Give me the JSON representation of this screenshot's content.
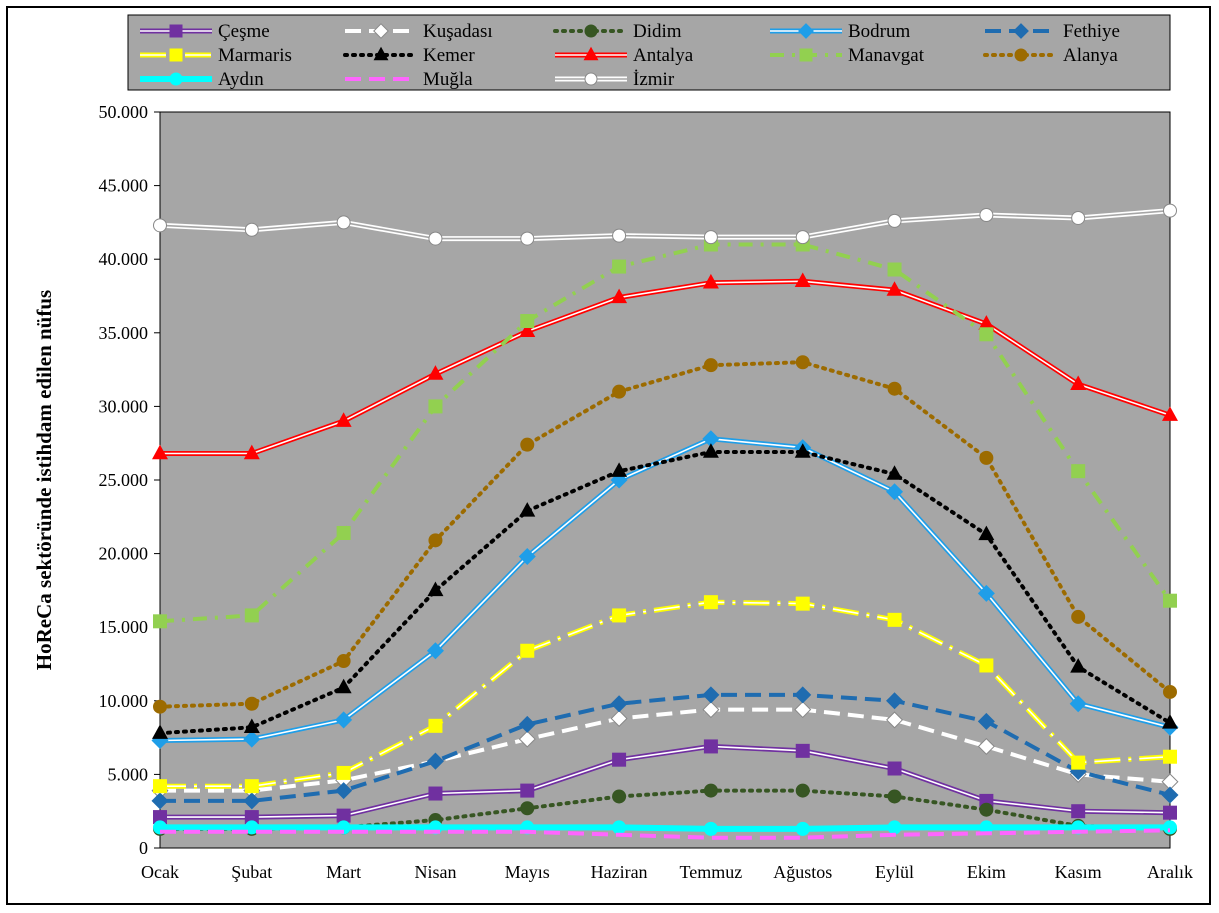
{
  "chart_data": {
    "type": "line",
    "ylabel": "HoReCa sektöründe istihdam edilen nüfus",
    "ylim": [
      0,
      50000
    ],
    "yticks": [
      0,
      5000,
      10000,
      15000,
      20000,
      25000,
      30000,
      35000,
      40000,
      45000,
      50000
    ],
    "ytick_labels": [
      "0",
      "5.000",
      "10.000",
      "15.000",
      "20.000",
      "25.000",
      "30.000",
      "35.000",
      "40.000",
      "45.000",
      "50.000"
    ],
    "categories": [
      "Ocak",
      "Şubat",
      "Mart",
      "Nisan",
      "Mayıs",
      "Haziran",
      "Temmuz",
      "Ağustos",
      "Eylül",
      "Ekim",
      "Kasım",
      "Aralık"
    ],
    "grid": false,
    "legend_position": "top",
    "plot_background": "#a6a6a6",
    "series": [
      {
        "name": "Çeşme",
        "color": "#7030a0",
        "style": "double",
        "marker": "square",
        "values": [
          2100,
          2100,
          2200,
          3700,
          3900,
          6000,
          6900,
          6600,
          5400,
          3200,
          2500,
          2400
        ]
      },
      {
        "name": "Kuşadası",
        "color": "#ffffff",
        "style": "dash",
        "marker": "diamond",
        "values": [
          3900,
          3900,
          4600,
          5900,
          7400,
          8800,
          9400,
          9400,
          8700,
          6900,
          5000,
          4500
        ]
      },
      {
        "name": "Didim",
        "color": "#375623",
        "style": "dot",
        "marker": "circle",
        "values": [
          1300,
          1300,
          1400,
          1900,
          2700,
          3500,
          3900,
          3900,
          3500,
          2600,
          1500,
          1300
        ]
      },
      {
        "name": "Bodrum",
        "color": "#1f9ee8",
        "style": "double",
        "marker": "diamond",
        "values": [
          7300,
          7400,
          8700,
          13400,
          19800,
          25000,
          27800,
          27200,
          24200,
          17300,
          9800,
          8200
        ]
      },
      {
        "name": "Fethiye",
        "color": "#1f6cb0",
        "style": "dash",
        "marker": "diamond",
        "values": [
          3200,
          3200,
          3900,
          5900,
          8400,
          9800,
          10400,
          10400,
          10000,
          8600,
          5200,
          3600
        ]
      },
      {
        "name": "Marmaris",
        "color": "#ffff00",
        "style": "double-dashdot",
        "marker": "square",
        "values": [
          4200,
          4200,
          5100,
          8300,
          13400,
          15800,
          16700,
          16600,
          15500,
          12400,
          5800,
          6200
        ]
      },
      {
        "name": "Kemer",
        "color": "#000000",
        "style": "dot",
        "marker": "triangle",
        "values": [
          7800,
          8200,
          10900,
          17500,
          22900,
          25600,
          26900,
          26900,
          25400,
          21300,
          12300,
          8500
        ]
      },
      {
        "name": "Antalya",
        "color": "#ff0000",
        "style": "double",
        "marker": "triangle",
        "values": [
          26800,
          26800,
          29000,
          32200,
          35100,
          37400,
          38400,
          38500,
          37900,
          35600,
          31500,
          29400
        ]
      },
      {
        "name": "Manavgat",
        "color": "#92d050",
        "style": "dashdot",
        "marker": "square",
        "values": [
          15400,
          15800,
          21400,
          30000,
          35800,
          39500,
          41000,
          41000,
          39300,
          34900,
          25600,
          16800
        ]
      },
      {
        "name": "Alanya",
        "color": "#9c6b00",
        "style": "dot",
        "marker": "circle",
        "values": [
          9600,
          9800,
          12700,
          20900,
          27400,
          31000,
          32800,
          33000,
          31200,
          26500,
          15700,
          10600
        ]
      },
      {
        "name": "Aydın",
        "color": "#00ffff",
        "style": "solid-thick",
        "marker": "circle",
        "values": [
          1400,
          1400,
          1400,
          1400,
          1400,
          1400,
          1300,
          1300,
          1400,
          1400,
          1400,
          1400
        ]
      },
      {
        "name": "Muğla",
        "color": "#ff66ff",
        "style": "dash",
        "marker": "none",
        "values": [
          1100,
          1100,
          1100,
          1100,
          1100,
          900,
          700,
          700,
          900,
          1000,
          1100,
          1200
        ]
      },
      {
        "name": "İzmir",
        "color": "#ffffff",
        "style": "double",
        "marker": "circle",
        "values": [
          42300,
          42000,
          42500,
          41400,
          41400,
          41600,
          41500,
          41500,
          42600,
          43000,
          42800,
          43300
        ]
      }
    ]
  }
}
